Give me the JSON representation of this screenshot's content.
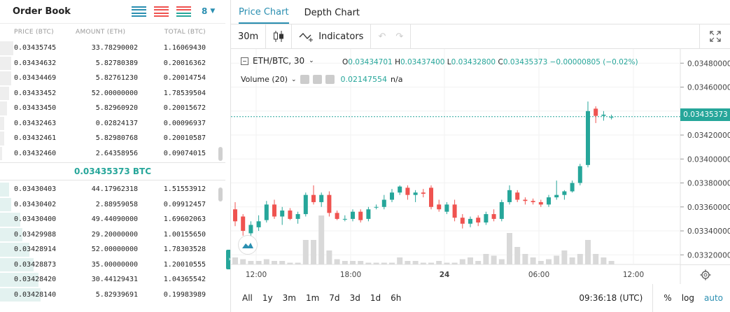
{
  "order_book": {
    "title": "Order Book",
    "depth": "8",
    "columns": {
      "price": "PRICE (BTC)",
      "amount": "AMOUNT (ETH)",
      "total": "TOTAL (BTC)"
    },
    "asks": [
      {
        "price": "0.03435745",
        "amount": "33.78290002",
        "total": "1.16069430",
        "depth": 0.06
      },
      {
        "price": "0.03434632",
        "amount": "5.82780389",
        "total": "0.20016362",
        "depth": 0.05
      },
      {
        "price": "0.03434469",
        "amount": "5.82761230",
        "total": "0.20014754",
        "depth": 0.05
      },
      {
        "price": "0.03433452",
        "amount": "52.00000000",
        "total": "1.78539504",
        "depth": 0.04
      },
      {
        "price": "0.03433450",
        "amount": "5.82960920",
        "total": "0.20015672",
        "depth": 0.03
      },
      {
        "price": "0.03432463",
        "amount": "0.02824137",
        "total": "0.00096937",
        "depth": 0.02
      },
      {
        "price": "0.03432461",
        "amount": "5.82980768",
        "total": "0.20010587",
        "depth": 0.02
      },
      {
        "price": "0.03432460",
        "amount": "2.64358956",
        "total": "0.09074015",
        "depth": 0.01
      }
    ],
    "mid_price": "0.03435373 BTC",
    "bids": [
      {
        "price": "0.03430403",
        "amount": "44.17962318",
        "total": "1.51553912",
        "depth": 0.04
      },
      {
        "price": "0.03430402",
        "amount": "2.88959058",
        "total": "0.09912457",
        "depth": 0.05
      },
      {
        "price": "0.03430400",
        "amount": "49.44090000",
        "total": "1.69602063",
        "depth": 0.09
      },
      {
        "price": "0.03429988",
        "amount": "29.20000000",
        "total": "1.00155650",
        "depth": 0.1
      },
      {
        "price": "0.03428914",
        "amount": "52.00000000",
        "total": "1.78303528",
        "depth": 0.13
      },
      {
        "price": "0.03428873",
        "amount": "35.00000000",
        "total": "1.20010555",
        "depth": 0.15
      },
      {
        "price": "0.03428420",
        "amount": "30.44129431",
        "total": "1.04365542",
        "depth": 0.17
      },
      {
        "price": "0.03428140",
        "amount": "5.82939691",
        "total": "0.19983989",
        "depth": 0.18
      }
    ]
  },
  "chart": {
    "tabs": [
      "Price Chart",
      "Depth Chart"
    ],
    "active_tab": "Price Chart",
    "interval": "30m",
    "indicators_label": "Indicators",
    "symbol": "ETH/BTC, 30",
    "ohlc": {
      "o_label": "O",
      "o": "0.03434701",
      "h_label": "H",
      "h": "0.03437400",
      "l_label": "L",
      "l": "0.03432800",
      "c_label": "C",
      "c": "0.03435373",
      "change": "−0.00000805 (−0.02%)"
    },
    "volume_label": "Volume (20)",
    "volume_value": "0.02147554",
    "volume_na": "n/a",
    "last_price": "0.03435373",
    "ranges": [
      "All",
      "1y",
      "3m",
      "1m",
      "7d",
      "3d",
      "1d",
      "6h"
    ],
    "time": "09:36:18 (UTC)",
    "scale_options": [
      "%",
      "log",
      "auto"
    ],
    "colors": {
      "up": "#26a69a",
      "down": "#ef5350",
      "accent": "#2b8fb1"
    }
  },
  "chart_data": {
    "type": "candlestick",
    "y_ticks": [
      "0.03480000",
      "0.03460000",
      "0.03440000",
      "0.03420000",
      "0.03400000",
      "0.03380000",
      "0.03360000",
      "0.03340000",
      "0.03320000"
    ],
    "x_ticks": [
      "12:00",
      "18:00",
      "24",
      "06:00",
      "12:00"
    ],
    "ylim": [
      0.03312,
      0.03486
    ],
    "candles": [
      {
        "o": 0.03358,
        "h": 0.03364,
        "l": 0.03344,
        "c": 0.03348
      },
      {
        "o": 0.03352,
        "h": 0.03354,
        "l": 0.03336,
        "c": 0.0334
      },
      {
        "o": 0.03338,
        "h": 0.03348,
        "l": 0.03334,
        "c": 0.03345
      },
      {
        "o": 0.03343,
        "h": 0.03353,
        "l": 0.0334,
        "c": 0.03348
      },
      {
        "o": 0.03349,
        "h": 0.03365,
        "l": 0.03347,
        "c": 0.03362
      },
      {
        "o": 0.03362,
        "h": 0.03366,
        "l": 0.0335,
        "c": 0.03352
      },
      {
        "o": 0.03352,
        "h": 0.0336,
        "l": 0.03345,
        "c": 0.03357
      },
      {
        "o": 0.03357,
        "h": 0.03359,
        "l": 0.03349,
        "c": 0.0335
      },
      {
        "o": 0.0335,
        "h": 0.03356,
        "l": 0.03346,
        "c": 0.03354
      },
      {
        "o": 0.03354,
        "h": 0.03372,
        "l": 0.03352,
        "c": 0.0337
      },
      {
        "o": 0.0337,
        "h": 0.03378,
        "l": 0.03362,
        "c": 0.03364
      },
      {
        "o": 0.03364,
        "h": 0.03372,
        "l": 0.0336,
        "c": 0.0337
      },
      {
        "o": 0.0337,
        "h": 0.03373,
        "l": 0.03352,
        "c": 0.03355
      },
      {
        "o": 0.03355,
        "h": 0.03357,
        "l": 0.03349,
        "c": 0.0335
      },
      {
        "o": 0.0335,
        "h": 0.03353,
        "l": 0.03348,
        "c": 0.0335
      },
      {
        "o": 0.0335,
        "h": 0.03358,
        "l": 0.03348,
        "c": 0.03356
      },
      {
        "o": 0.03356,
        "h": 0.03358,
        "l": 0.03347,
        "c": 0.03349
      },
      {
        "o": 0.0335,
        "h": 0.0336,
        "l": 0.03348,
        "c": 0.03358
      },
      {
        "o": 0.0336,
        "h": 0.03362,
        "l": 0.03358,
        "c": 0.0336
      },
      {
        "o": 0.0336,
        "h": 0.0337,
        "l": 0.03358,
        "c": 0.03366
      },
      {
        "o": 0.03366,
        "h": 0.03375,
        "l": 0.03364,
        "c": 0.03372
      },
      {
        "o": 0.03372,
        "h": 0.03378,
        "l": 0.0337,
        "c": 0.03377
      },
      {
        "o": 0.03376,
        "h": 0.03378,
        "l": 0.03366,
        "c": 0.0337
      },
      {
        "o": 0.0337,
        "h": 0.03374,
        "l": 0.03364,
        "c": 0.03372
      },
      {
        "o": 0.03372,
        "h": 0.03375,
        "l": 0.03368,
        "c": 0.03371
      },
      {
        "o": 0.03376,
        "h": 0.03378,
        "l": 0.03358,
        "c": 0.0336
      },
      {
        "o": 0.03362,
        "h": 0.03366,
        "l": 0.03356,
        "c": 0.03358
      },
      {
        "o": 0.03356,
        "h": 0.03364,
        "l": 0.03354,
        "c": 0.03362
      },
      {
        "o": 0.03362,
        "h": 0.03366,
        "l": 0.03348,
        "c": 0.03351
      },
      {
        "o": 0.03351,
        "h": 0.03354,
        "l": 0.03342,
        "c": 0.03346
      },
      {
        "o": 0.03346,
        "h": 0.03352,
        "l": 0.03343,
        "c": 0.0335
      },
      {
        "o": 0.03351,
        "h": 0.03353,
        "l": 0.03344,
        "c": 0.03347
      },
      {
        "o": 0.03347,
        "h": 0.03356,
        "l": 0.03345,
        "c": 0.03354
      },
      {
        "o": 0.03354,
        "h": 0.03358,
        "l": 0.03348,
        "c": 0.0335
      },
      {
        "o": 0.0335,
        "h": 0.03366,
        "l": 0.03348,
        "c": 0.03364
      },
      {
        "o": 0.03364,
        "h": 0.03378,
        "l": 0.03362,
        "c": 0.03374
      },
      {
        "o": 0.03372,
        "h": 0.03374,
        "l": 0.03364,
        "c": 0.03366
      },
      {
        "o": 0.03366,
        "h": 0.03368,
        "l": 0.03362,
        "c": 0.03365
      },
      {
        "o": 0.03365,
        "h": 0.03367,
        "l": 0.03362,
        "c": 0.03364
      },
      {
        "o": 0.03364,
        "h": 0.03366,
        "l": 0.0336,
        "c": 0.03362
      },
      {
        "o": 0.03362,
        "h": 0.0337,
        "l": 0.0336,
        "c": 0.03368
      },
      {
        "o": 0.03368,
        "h": 0.03382,
        "l": 0.03366,
        "c": 0.0337
      },
      {
        "o": 0.0337,
        "h": 0.03374,
        "l": 0.03366,
        "c": 0.03373
      },
      {
        "o": 0.03373,
        "h": 0.03382,
        "l": 0.03372,
        "c": 0.0338
      },
      {
        "o": 0.0338,
        "h": 0.03396,
        "l": 0.03378,
        "c": 0.03394
      },
      {
        "o": 0.03395,
        "h": 0.03448,
        "l": 0.03393,
        "c": 0.0344
      },
      {
        "o": 0.03442,
        "h": 0.03444,
        "l": 0.0343,
        "c": 0.03436
      },
      {
        "o": 0.03436,
        "h": 0.0344,
        "l": 0.03432,
        "c": 0.03437
      },
      {
        "o": 0.03435,
        "h": 0.03437,
        "l": 0.03433,
        "c": 0.03435
      }
    ],
    "volumes": [
      4,
      3,
      2,
      2,
      3,
      2,
      2,
      1,
      1,
      14,
      14,
      28,
      8,
      3,
      2,
      2,
      2,
      1,
      1,
      1,
      1,
      4,
      2,
      2,
      1,
      1,
      2,
      1,
      1,
      3,
      4,
      2,
      6,
      5,
      3,
      18,
      10,
      6,
      4,
      2,
      3,
      5,
      8,
      4,
      6,
      14,
      6,
      4,
      2
    ]
  }
}
